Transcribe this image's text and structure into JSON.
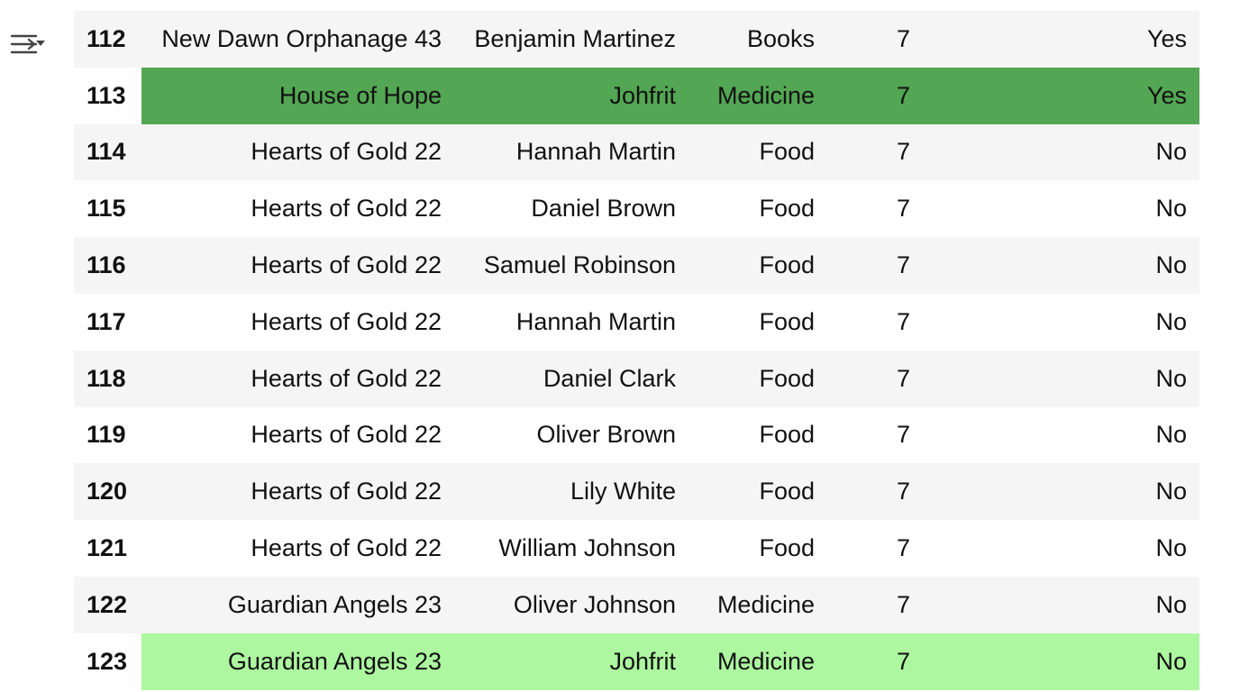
{
  "toolbar": {
    "filter_icon": "filter-sliders-icon"
  },
  "colors": {
    "highlight_dark": "#53a653",
    "highlight_light": "#adf7a0",
    "row_stripe": "#f5f5f5"
  },
  "table": {
    "rows": [
      {
        "index": "112",
        "org": "New Dawn Orphanage 43",
        "name": "Benjamin Martinez",
        "category": "Books",
        "qty": "7",
        "flag": "Yes",
        "highlight": "none"
      },
      {
        "index": "113",
        "org": "House of Hope",
        "name": "Johfrit",
        "category": "Medicine",
        "qty": "7",
        "flag": "Yes",
        "highlight": "dark"
      },
      {
        "index": "114",
        "org": "Hearts of Gold 22",
        "name": "Hannah Martin",
        "category": "Food",
        "qty": "7",
        "flag": "No",
        "highlight": "none"
      },
      {
        "index": "115",
        "org": "Hearts of Gold 22",
        "name": "Daniel Brown",
        "category": "Food",
        "qty": "7",
        "flag": "No",
        "highlight": "none"
      },
      {
        "index": "116",
        "org": "Hearts of Gold 22",
        "name": "Samuel Robinson",
        "category": "Food",
        "qty": "7",
        "flag": "No",
        "highlight": "none"
      },
      {
        "index": "117",
        "org": "Hearts of Gold 22",
        "name": "Hannah Martin",
        "category": "Food",
        "qty": "7",
        "flag": "No",
        "highlight": "none"
      },
      {
        "index": "118",
        "org": "Hearts of Gold 22",
        "name": "Daniel Clark",
        "category": "Food",
        "qty": "7",
        "flag": "No",
        "highlight": "none"
      },
      {
        "index": "119",
        "org": "Hearts of Gold 22",
        "name": "Oliver Brown",
        "category": "Food",
        "qty": "7",
        "flag": "No",
        "highlight": "none"
      },
      {
        "index": "120",
        "org": "Hearts of Gold 22",
        "name": "Lily White",
        "category": "Food",
        "qty": "7",
        "flag": "No",
        "highlight": "none"
      },
      {
        "index": "121",
        "org": "Hearts of Gold 22",
        "name": "William Johnson",
        "category": "Food",
        "qty": "7",
        "flag": "No",
        "highlight": "none"
      },
      {
        "index": "122",
        "org": "Guardian Angels 23",
        "name": "Oliver Johnson",
        "category": "Medicine",
        "qty": "7",
        "flag": "No",
        "highlight": "none"
      },
      {
        "index": "123",
        "org": "Guardian Angels 23",
        "name": "Johfrit",
        "category": "Medicine",
        "qty": "7",
        "flag": "No",
        "highlight": "light"
      }
    ]
  }
}
